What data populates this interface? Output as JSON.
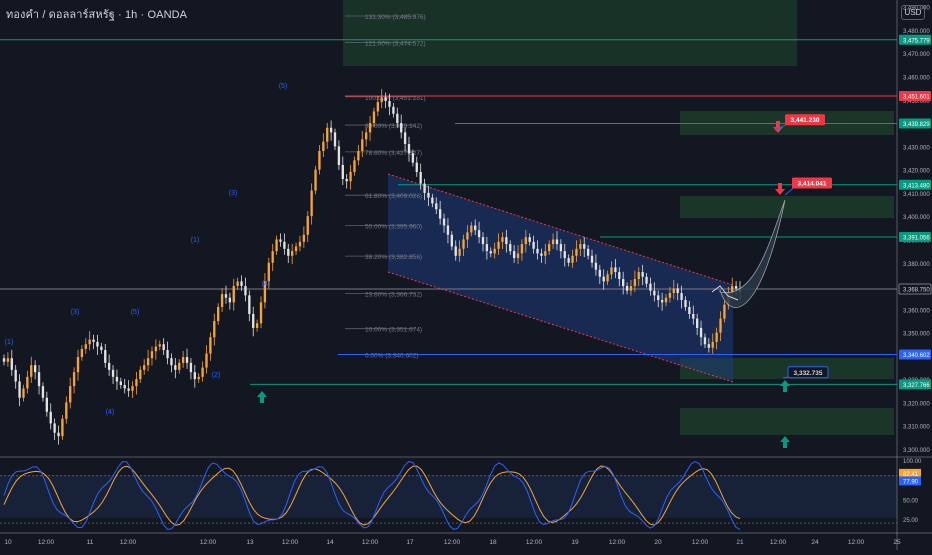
{
  "header": {
    "symbol_title": "ทองคำ / ดอลลาร์สหรัฐ · 1h · OANDA",
    "currency_button": "USD"
  },
  "colors": {
    "background": "#131722",
    "bull": "#f7a434",
    "bear": "#e3e3e3",
    "fib": "#5d606b",
    "green_line": "#089981",
    "red_line": "#f23645",
    "blue_line": "#2962ff",
    "channel": "#1e2a5a",
    "zone": "#1b3a2a",
    "stoch_k": "#2962ff",
    "stoch_d": "#f7a434"
  },
  "chart_data": {
    "type": "candlestick",
    "ylim": [
      3297,
      3492
    ],
    "y_ticks": [
      "3,490.000",
      "3,480.000",
      "3,470.000",
      "3,460.000",
      "3,450.000",
      "3,440.000",
      "3,430.000",
      "3,420.000",
      "3,410.000",
      "3,400.000",
      "3,390.000",
      "3,380.000",
      "3,370.000",
      "3,360.000",
      "3,350.000",
      "3,340.000",
      "3,330.000",
      "3,320.000",
      "3,310.000",
      "3,300.000"
    ],
    "x_ticks": [
      "10",
      "12:00",
      "11",
      "12:00",
      "12:00",
      "13",
      "12:00",
      "14",
      "12:00",
      "17",
      "12:00",
      "18",
      "12:00",
      "19",
      "12:00",
      "20",
      "12:00",
      "21",
      "12:00",
      "24",
      "12:00",
      "25"
    ],
    "close_series": [
      3337.5,
      3339.0,
      3334.0,
      3329.0,
      3322.0,
      3326.0,
      3331.0,
      3336.0,
      3333.0,
      3327.0,
      3322.0,
      3316.0,
      3311.0,
      3307.0,
      3305.5,
      3313.0,
      3320.0,
      3327.0,
      3333.0,
      3339.5,
      3343.0,
      3345.0,
      3347.0,
      3346.0,
      3344.0,
      3342.5,
      3337.0,
      3334.0,
      3331.0,
      3329.0,
      3327.5,
      3326.0,
      3325.0,
      3327.0,
      3330.0,
      3334.0,
      3336.0,
      3339.0,
      3342.0,
      3344.0,
      3345.0,
      3342.5,
      3339.0,
      3336.0,
      3334.0,
      3337.0,
      3339.5,
      3337.0,
      3333.0,
      3330.0,
      3331.0,
      3335.0,
      3341.0,
      3348.0,
      3355.0,
      3361.0,
      3366.5,
      3365.0,
      3363.0,
      3370.0,
      3372.0,
      3370.0,
      3366.0,
      3358.0,
      3352.0,
      3354.0,
      3363.0,
      3372.0,
      3380.0,
      3385.0,
      3390.0,
      3389.0,
      3386.0,
      3383.0,
      3385.0,
      3387.0,
      3389.0,
      3392.0,
      3400.0,
      3411.0,
      3420.0,
      3428.0,
      3432.0,
      3438.0,
      3436.0,
      3430.0,
      3422.0,
      3416.0,
      3415.0,
      3419.0,
      3424.0,
      3428.0,
      3433.0,
      3436.0,
      3440.0,
      3445.0,
      3449.0,
      3451.0,
      3449.5,
      3447.0,
      3444.0,
      3440.0,
      3436.0,
      3431.0,
      3427.0,
      3423.0,
      3419.0,
      3414.0,
      3410.0,
      3408.0,
      3405.5,
      3403.0,
      3399.0,
      3396.0,
      3392.0,
      3387.0,
      3383.0,
      3386.0,
      3390.0,
      3393.0,
      3396.0,
      3394.0,
      3391.0,
      3388.0,
      3385.0,
      3384.0,
      3386.0,
      3389.0,
      3391.0,
      3388.0,
      3385.0,
      3382.0,
      3384.0,
      3388.0,
      3391.0,
      3389.0,
      3386.0,
      3384.0,
      3383.0,
      3385.0,
      3388.0,
      3390.0,
      3388.0,
      3385.0,
      3382.0,
      3380.0,
      3383.0,
      3386.0,
      3388.0,
      3386.0,
      3383.0,
      3380.0,
      3377.0,
      3374.0,
      3372.0,
      3375.0,
      3378.0,
      3376.0,
      3373.0,
      3370.0,
      3368.0,
      3370.0,
      3373.0,
      3376.0,
      3374.0,
      3371.0,
      3368.0,
      3366.0,
      3364.0,
      3363.0,
      3365.0,
      3367.0,
      3369.0,
      3367.0,
      3364.0,
      3361.0,
      3358.0,
      3356.0,
      3352.0,
      3348.0,
      3345.0,
      3343.5,
      3346.0,
      3350.0,
      3356.0,
      3362.0,
      3367.0,
      3370.0,
      3369.0,
      3367.5
    ],
    "annotations": {
      "waves": [
        "(1)",
        "(3)",
        "(5)",
        "(4)",
        "(1)",
        "(2)",
        "(3)",
        "(4)",
        "(5)"
      ],
      "fib_levels": [
        {
          "label": "131.30% (3,485.976)",
          "value": 3485.976
        },
        {
          "label": "121.00% (3,474.572)",
          "value": 3474.572
        },
        {
          "label": "100.00% (3,451.281)",
          "value": 3451.281
        },
        {
          "label": "89.00% (3,439.142)",
          "value": 3439.142
        },
        {
          "label": "78.60% (3,427.627)",
          "value": 3427.627
        },
        {
          "label": "61.80% (3,409.026)",
          "value": 3409.026
        },
        {
          "label": "50.00% (3,395.960)",
          "value": 3395.96
        },
        {
          "label": "38.20% (3,382.856)",
          "value": 3382.856
        },
        {
          "label": "23.60% (3,366.732)",
          "value": 3366.732
        },
        {
          "label": "10.00% (3,351.674)",
          "value": 3351.674
        },
        {
          "label": "0.00% (3,340.602)",
          "value": 3340.602
        }
      ],
      "price_labels": [
        {
          "text": "3,475.779",
          "value": 3475.779,
          "color": "#089981"
        },
        {
          "text": "3,451.601",
          "value": 3451.601,
          "color": "#f23645"
        },
        {
          "text": "3,439.829",
          "value": 3439.829,
          "color": "#089981"
        },
        {
          "text": "3,413.480",
          "value": 3413.48,
          "color": "#089981"
        },
        {
          "text": "3,391.056",
          "value": 3391.056,
          "color": "#089981"
        },
        {
          "text": "3,368.750",
          "value": 3368.75,
          "color": "#d1d4dc"
        },
        {
          "text": "3,340.602",
          "value": 3340.602,
          "color": "#2962ff"
        },
        {
          "text": "3,327.766",
          "value": 3327.766,
          "color": "#089981"
        }
      ],
      "target_boxes": [
        {
          "text": "3,441.230",
          "value": 3441.23
        },
        {
          "text": "3,414.041",
          "value": 3414.041
        },
        {
          "text": "3,332.735",
          "value": 3332.735
        }
      ]
    },
    "stoch": {
      "ylim": [
        10,
        100
      ],
      "ticks": [
        "100.00",
        "75.00",
        "50.00",
        "25.00"
      ],
      "k_label": "82.41",
      "d_label": "77.90"
    }
  }
}
